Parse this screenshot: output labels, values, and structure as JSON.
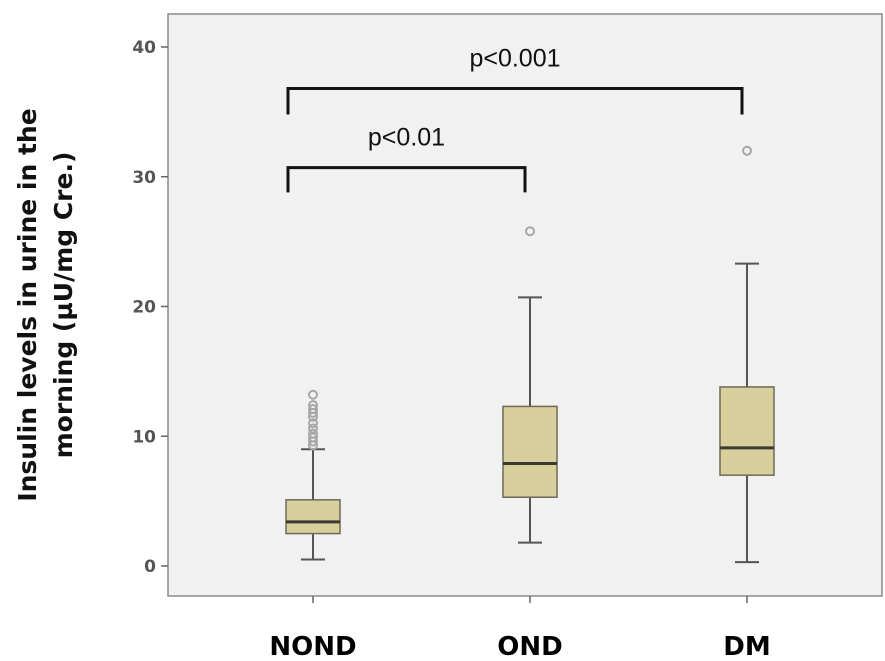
{
  "chart_data": {
    "type": "box",
    "categories": [
      "NOND",
      "OND",
      "DM"
    ],
    "ylabel_lines": [
      "Insulin levels in urine in the",
      "morning (µU/mg Cre.)"
    ],
    "ylim": [
      -2,
      42
    ],
    "yticks": [
      "0",
      "10",
      "20",
      "30",
      "40"
    ],
    "ytick_values": [
      0,
      10,
      20,
      30,
      40
    ],
    "grid": false,
    "colors": {
      "box_fill": "#d8cf9c",
      "box_edge": "#6e6a55",
      "median": "#3a3a30",
      "whisker": "#555555",
      "outlier": "#a7a7a7",
      "plot_bg": "#f1f1f1",
      "frame": "#8a8a8a",
      "bracket": "#111111"
    },
    "boxes": [
      {
        "category": "NOND",
        "whisker_low": 0.5,
        "q1": 2.5,
        "median": 3.4,
        "q3": 5.1,
        "whisker_high": 9.0,
        "outliers": [
          9.3,
          9.6,
          9.9,
          10.2,
          10.6,
          11.0,
          11.5,
          11.8,
          12.1,
          12.4,
          13.2
        ]
      },
      {
        "category": "OND",
        "whisker_low": 1.8,
        "q1": 5.3,
        "median": 7.9,
        "q3": 12.3,
        "whisker_high": 20.7,
        "outliers": [
          25.8
        ]
      },
      {
        "category": "DM",
        "whisker_low": 0.3,
        "q1": 7.0,
        "median": 9.1,
        "q3": 13.8,
        "whisker_high": 23.3,
        "outliers": [
          32.0
        ]
      }
    ],
    "annotations": [
      {
        "label": "p<0.01",
        "from": "NOND",
        "to": "OND",
        "y": 30.7,
        "drop_to": 28.8
      },
      {
        "label": "p<0.001",
        "from": "NOND",
        "to": "DM",
        "y": 36.8,
        "drop_to": 34.8
      }
    ]
  }
}
